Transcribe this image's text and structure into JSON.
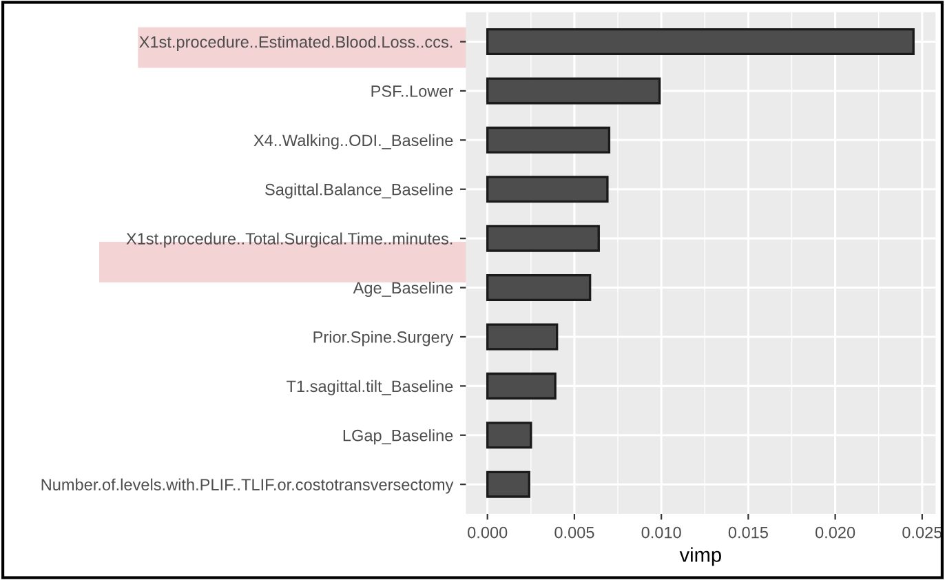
{
  "chart_data": {
    "type": "bar",
    "orientation": "horizontal",
    "xlabel": "vimp",
    "categories": [
      "X1st.procedure..Estimated.Blood.Loss..ccs.",
      "PSF..Lower",
      "X4..Walking..ODI._Baseline",
      "Sagittal.Balance_Baseline",
      "X1st.procedure..Total.Surgical.Time..minutes.",
      "Age_Baseline",
      "Prior.Spine.Surgery",
      "T1.sagittal.tilt_Baseline",
      "LGap_Baseline",
      "Number.of.levels.with.PLIF..TLIF.or.costotransversectomy"
    ],
    "values": [
      0.0245,
      0.0099,
      0.007,
      0.0069,
      0.0064,
      0.0059,
      0.004,
      0.0039,
      0.0025,
      0.0024
    ],
    "color": "#4d4d4d",
    "xlim": [
      -0.00124,
      0.02577
    ],
    "xticks": [
      {
        "value": 0,
        "label": "0.000"
      },
      {
        "value": 0.005,
        "label": "0.005"
      },
      {
        "value": 0.01,
        "label": "0.010"
      },
      {
        "value": 0.015,
        "label": "0.015"
      },
      {
        "value": 0.02,
        "label": "0.020"
      },
      {
        "value": 0.025,
        "label": "0.025"
      }
    ],
    "grid": true
  }
}
